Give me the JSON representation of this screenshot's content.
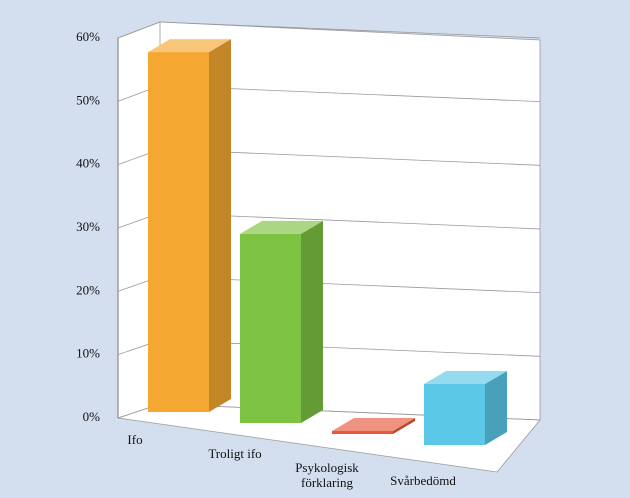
{
  "chart_data": {
    "type": "bar3d",
    "categories": [
      "Ifo",
      "Troligt ifo",
      "Psykologisk förklaring",
      "Svårbedömd"
    ],
    "values": [
      59,
      31,
      0.5,
      10
    ],
    "colors": [
      "#f4a731",
      "#7dc241",
      "#e8573c",
      "#5bc8e8"
    ],
    "ylim": [
      0,
      60
    ],
    "yticks": [
      {
        "value": 0,
        "label": "0%"
      },
      {
        "value": 10,
        "label": "10%"
      },
      {
        "value": 20,
        "label": "20%"
      },
      {
        "value": 30,
        "label": "30%"
      },
      {
        "value": 40,
        "label": "40%"
      },
      {
        "value": 50,
        "label": "50%"
      },
      {
        "value": 60,
        "label": "60%"
      }
    ],
    "grid": true
  }
}
